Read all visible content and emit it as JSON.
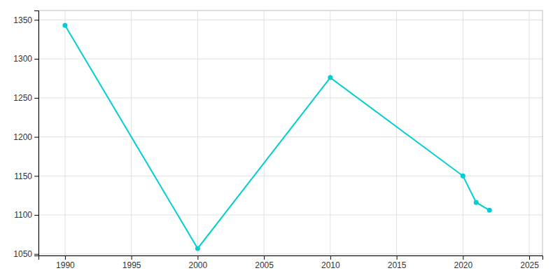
{
  "chart_data": {
    "type": "line",
    "x": [
      1990,
      2000,
      2010,
      2020,
      2021,
      2022
    ],
    "values": [
      1343,
      1057,
      1276,
      1150,
      1116,
      1106
    ],
    "color": "#00CED1",
    "marker": "circle",
    "xlim": [
      1988,
      2026
    ],
    "ylim": [
      1048,
      1362
    ],
    "xticks": [
      1990,
      1995,
      2000,
      2005,
      2010,
      2015,
      2020,
      2025
    ],
    "yticks": [
      1050,
      1100,
      1150,
      1200,
      1250,
      1300,
      1350
    ],
    "grid": true
  }
}
